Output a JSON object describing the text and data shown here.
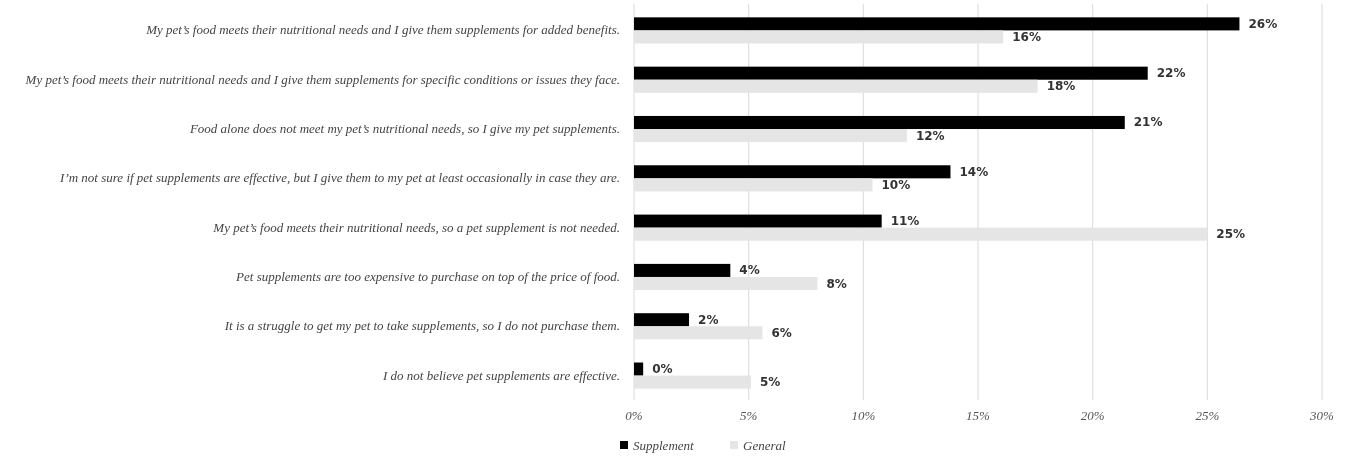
{
  "chart_data": {
    "type": "bar",
    "orientation": "horizontal",
    "categories": [
      "My pet’s food meets their nutritional needs and I give them supplements for added benefits.",
      "My pet’s food meets their nutritional needs and I give them supplements for specific conditions or issues they face.",
      "Food alone does not meet my pet’s nutritional needs, so I give my pet supplements.",
      "I’m not sure if pet supplements are effective, but I give them to my pet at least occasionally in case they are.",
      "My pet’s food meets their nutritional needs, so a pet supplement is not needed.",
      "Pet supplements are too expensive to purchase on top of the price of food.",
      "It is a struggle to get my pet to take supplements, so I do not purchase them.",
      "I do not believe pet supplements are effective."
    ],
    "series": [
      {
        "name": "Supplement",
        "color": "#000000",
        "values": [
          26.4,
          22.4,
          21.4,
          13.8,
          10.8,
          4.2,
          2.4,
          0.4
        ],
        "value_labels": [
          "26%",
          "22%",
          "21%",
          "14%",
          "11%",
          "4%",
          "2%",
          "0%"
        ]
      },
      {
        "name": "General",
        "color": "#e6e5e5",
        "values": [
          16.1,
          17.6,
          11.9,
          10.4,
          25.0,
          8.0,
          5.6,
          5.1
        ],
        "value_labels": [
          "16%",
          "18%",
          "12%",
          "10%",
          "25%",
          "8%",
          "6%",
          "5%"
        ]
      }
    ],
    "xlim": [
      0,
      30
    ],
    "xticks": [
      {
        "value": 0,
        "label": "0%"
      },
      {
        "value": 5,
        "label": "5%"
      },
      {
        "value": 10,
        "label": "10%"
      },
      {
        "value": 15,
        "label": "15%"
      },
      {
        "value": 20,
        "label": "20%"
      },
      {
        "value": 25,
        "label": "25%"
      },
      {
        "value": 30,
        "label": "30%"
      }
    ],
    "grid": "x",
    "legend": "bottom"
  }
}
